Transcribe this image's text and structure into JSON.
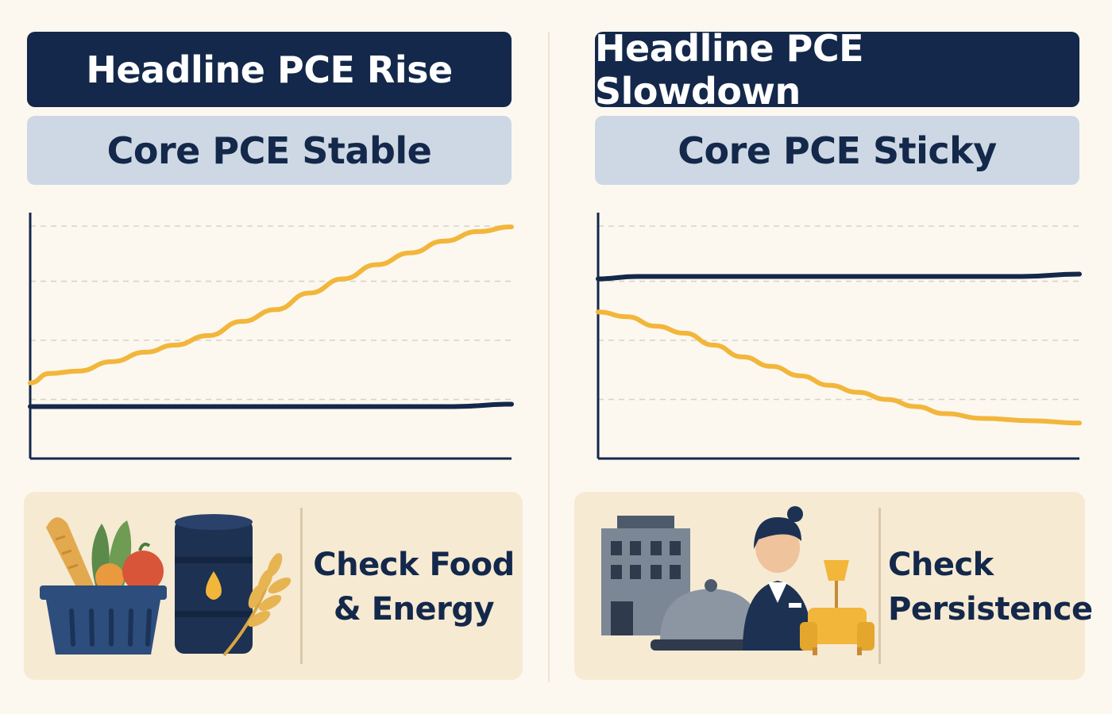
{
  "colors": {
    "navy": "#13284a",
    "gold": "#f2b63b",
    "subtitle_bg": "#cdd8e4",
    "card_bg": "#f6ead3",
    "page_bg": "#fcf8f0"
  },
  "left_panel": {
    "title": "Headline PCE Rise",
    "subtitle": "Core PCE Stable",
    "card_line1": "Check Food",
    "card_line2": "& Energy",
    "icons": [
      "bread-icon",
      "vegetables-icon",
      "basket-icon",
      "oil-barrel-icon",
      "wheat-icon"
    ]
  },
  "right_panel": {
    "title": "Headline PCE Slowdown",
    "subtitle": "Core PCE Sticky",
    "card_line1": "Check",
    "card_line2": "Persistence",
    "icons": [
      "building-icon",
      "cloche-icon",
      "service-worker-icon",
      "lamp-icon",
      "armchair-icon"
    ]
  },
  "chart_data": [
    {
      "type": "line",
      "ylim": [
        0,
        100
      ],
      "grid": true,
      "series": [
        {
          "color": "#f2b63b",
          "values": [
            [
              0,
              32
            ],
            [
              4,
              36
            ],
            [
              10,
              37
            ],
            [
              17,
              41
            ],
            [
              24,
              45
            ],
            [
              30,
              48
            ],
            [
              37,
              52
            ],
            [
              44,
              58
            ],
            [
              51,
              63
            ],
            [
              58,
              70
            ],
            [
              65,
              76
            ],
            [
              72,
              82
            ],
            [
              79,
              87
            ],
            [
              86,
              92
            ],
            [
              93,
              96
            ],
            [
              100,
              98
            ]
          ]
        },
        {
          "color": "#13284a",
          "values": [
            [
              0,
              22
            ],
            [
              8,
              22
            ],
            [
              16,
              22
            ],
            [
              24,
              22
            ],
            [
              32,
              22
            ],
            [
              40,
              22
            ],
            [
              48,
              22
            ],
            [
              56,
              22
            ],
            [
              64,
              22
            ],
            [
              72,
              22
            ],
            [
              80,
              22
            ],
            [
              88,
              22
            ],
            [
              100,
              23
            ]
          ]
        }
      ]
    },
    {
      "type": "line",
      "ylim": [
        0,
        100
      ],
      "grid": true,
      "series": [
        {
          "color": "#13284a",
          "values": [
            [
              0,
              76
            ],
            [
              8,
              77
            ],
            [
              16,
              77
            ],
            [
              24,
              77
            ],
            [
              32,
              77
            ],
            [
              40,
              77
            ],
            [
              48,
              77
            ],
            [
              56,
              77
            ],
            [
              64,
              77
            ],
            [
              72,
              77
            ],
            [
              80,
              77
            ],
            [
              88,
              77
            ],
            [
              100,
              78
            ]
          ]
        },
        {
          "color": "#f2b63b",
          "values": [
            [
              0,
              62
            ],
            [
              6,
              60
            ],
            [
              12,
              56
            ],
            [
              18,
              53
            ],
            [
              24,
              48
            ],
            [
              30,
              43
            ],
            [
              36,
              39
            ],
            [
              42,
              35
            ],
            [
              48,
              31
            ],
            [
              54,
              28
            ],
            [
              60,
              25
            ],
            [
              66,
              22
            ],
            [
              72,
              19
            ],
            [
              80,
              17
            ],
            [
              90,
              16
            ],
            [
              100,
              15
            ]
          ]
        }
      ]
    }
  ]
}
